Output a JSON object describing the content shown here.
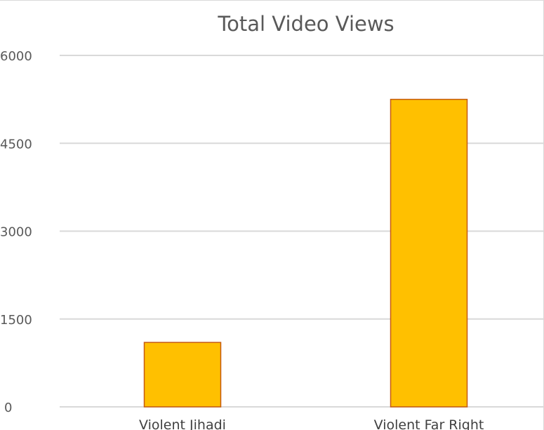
{
  "chart_data": {
    "type": "bar",
    "title": "Total Video Views",
    "xlabel": "",
    "ylabel": "",
    "categories": [
      "Violent Jihadi",
      "Violent Far Right"
    ],
    "values": [
      1100,
      5250
    ],
    "ylim": [
      0,
      6000
    ],
    "yticks": [
      0,
      1500,
      3000,
      4500,
      6000
    ],
    "grid": true,
    "legend": "none",
    "colors": {
      "bar_fill": "#ffc000",
      "bar_stroke": "#c55a11",
      "grid": "#d9d9d9",
      "text": "#595959"
    }
  }
}
